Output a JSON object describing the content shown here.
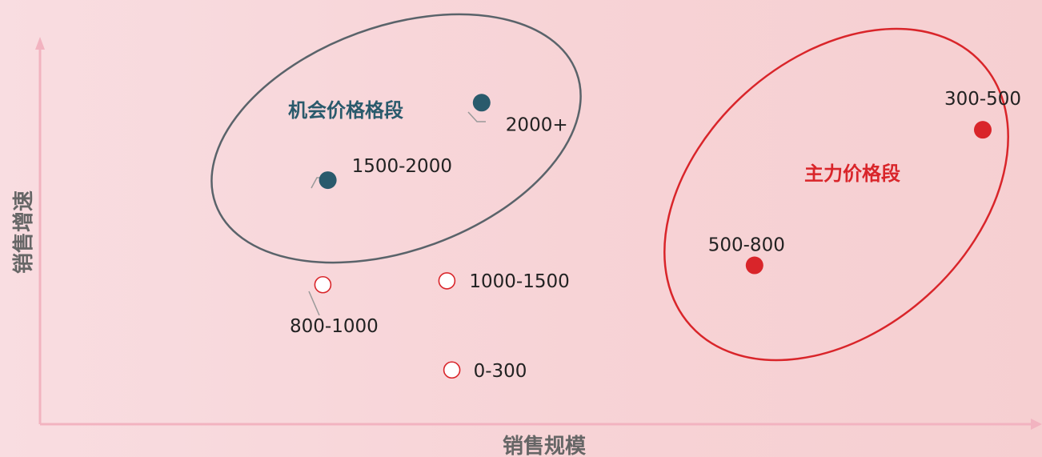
{
  "chart_data": {
    "type": "scatter",
    "title": "",
    "xlabel": "销售规模",
    "ylabel": "销售增速",
    "colors": {
      "axis": "#f2b3c0",
      "opportunity": "#2a5a6c",
      "main": "#d9252a",
      "ellipse_opportunity": "#5a636a",
      "ellipse_main": "#d9252a",
      "other_fill": "#ffffff",
      "other_stroke": "#d9252a",
      "leader": "#9a9a9a"
    },
    "groups": [
      {
        "name": "机会价格格段",
        "color": "#2a5a6c"
      },
      {
        "name": "主力价格段",
        "color": "#d9252a"
      }
    ],
    "points": [
      {
        "label": "2000+",
        "x": 0.445,
        "y": 0.83,
        "group": "opportunity"
      },
      {
        "label": "1500-2000",
        "x": 0.29,
        "y": 0.63,
        "group": "opportunity"
      },
      {
        "label": "300-500",
        "x": 0.95,
        "y": 0.76,
        "group": "main"
      },
      {
        "label": "500-800",
        "x": 0.72,
        "y": 0.41,
        "group": "main"
      },
      {
        "label": "800-1000",
        "x": 0.285,
        "y": 0.36,
        "group": "other"
      },
      {
        "label": "1000-1500",
        "x": 0.41,
        "y": 0.37,
        "group": "other"
      },
      {
        "label": "0-300",
        "x": 0.415,
        "y": 0.14,
        "group": "other"
      }
    ]
  }
}
